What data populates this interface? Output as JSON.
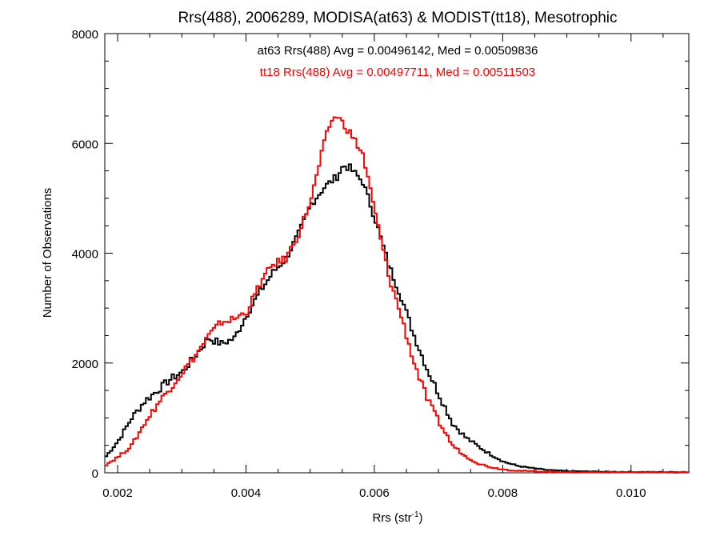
{
  "chart_data": {
    "type": "line",
    "title": "Rrs(488), 2006289, MODISA(at63) & MODIST(tt18), Mesotrophic",
    "xlabel": "Rrs (str",
    "xlabel_sup": "-1",
    "xlabel_close": ")",
    "ylabel": "Number of Observations",
    "xlim": [
      0.0018,
      0.0109
    ],
    "ylim": [
      0,
      8000
    ],
    "x_ticks": [
      0.002,
      0.004,
      0.006,
      0.008,
      0.01
    ],
    "x_tick_labels": [
      "0.002",
      "0.004",
      "0.006",
      "0.008",
      "0.010"
    ],
    "y_ticks": [
      0,
      2000,
      4000,
      6000,
      8000
    ],
    "y_tick_labels": [
      "0",
      "2000",
      "4000",
      "6000",
      "8000"
    ],
    "grid": false,
    "annotations": [
      {
        "text": "at63 Rrs(488) Avg = 0.00496142, Med = 0.00509836",
        "color": "#000000"
      },
      {
        "text": "tt18 Rrs(488) Avg = 0.00497711, Med = 0.00511503",
        "color": "#ff0000"
      }
    ],
    "series": [
      {
        "color": "#000000",
        "x": [
          0.0018,
          0.002,
          0.0022,
          0.0024,
          0.0026,
          0.0028,
          0.003,
          0.0032,
          0.0034,
          0.0036,
          0.0038,
          0.004,
          0.0042,
          0.0044,
          0.0046,
          0.0048,
          0.005,
          0.0052,
          0.0054,
          0.0055,
          0.0056,
          0.0058,
          0.006,
          0.0062,
          0.0064,
          0.0066,
          0.0068,
          0.007,
          0.0072,
          0.0074,
          0.0076,
          0.0078,
          0.008,
          0.0082,
          0.0084,
          0.0086,
          0.0088,
          0.009,
          0.0095,
          0.01,
          0.0109
        ],
        "y": [
          300,
          600,
          1000,
          1300,
          1500,
          1700,
          1850,
          2150,
          2450,
          2350,
          2450,
          2900,
          3300,
          3650,
          3900,
          4350,
          4900,
          5200,
          5400,
          5600,
          5550,
          5300,
          4600,
          3800,
          3200,
          2500,
          1900,
          1400,
          900,
          650,
          480,
          330,
          200,
          130,
          90,
          60,
          40,
          30,
          20,
          15,
          10
        ]
      },
      {
        "color": "#ff0000",
        "x": [
          0.0018,
          0.002,
          0.0022,
          0.0024,
          0.0026,
          0.0028,
          0.003,
          0.0032,
          0.0034,
          0.0036,
          0.0038,
          0.004,
          0.0042,
          0.0044,
          0.0046,
          0.0048,
          0.005,
          0.0052,
          0.0053,
          0.0054,
          0.0056,
          0.0058,
          0.006,
          0.0062,
          0.0064,
          0.0066,
          0.0068,
          0.007,
          0.0072,
          0.0074,
          0.0076,
          0.0078,
          0.008,
          0.0082,
          0.0084,
          0.0086,
          0.0088,
          0.009,
          0.0095,
          0.01,
          0.0109
        ],
        "y": [
          150,
          300,
          500,
          900,
          1250,
          1550,
          1850,
          2150,
          2500,
          2750,
          2800,
          2950,
          3450,
          3800,
          3900,
          4350,
          5000,
          6000,
          6400,
          6500,
          6200,
          5800,
          4700,
          3600,
          2850,
          2000,
          1350,
          900,
          500,
          300,
          170,
          100,
          60,
          40,
          30,
          20,
          15,
          10,
          10,
          10,
          10
        ]
      }
    ]
  }
}
